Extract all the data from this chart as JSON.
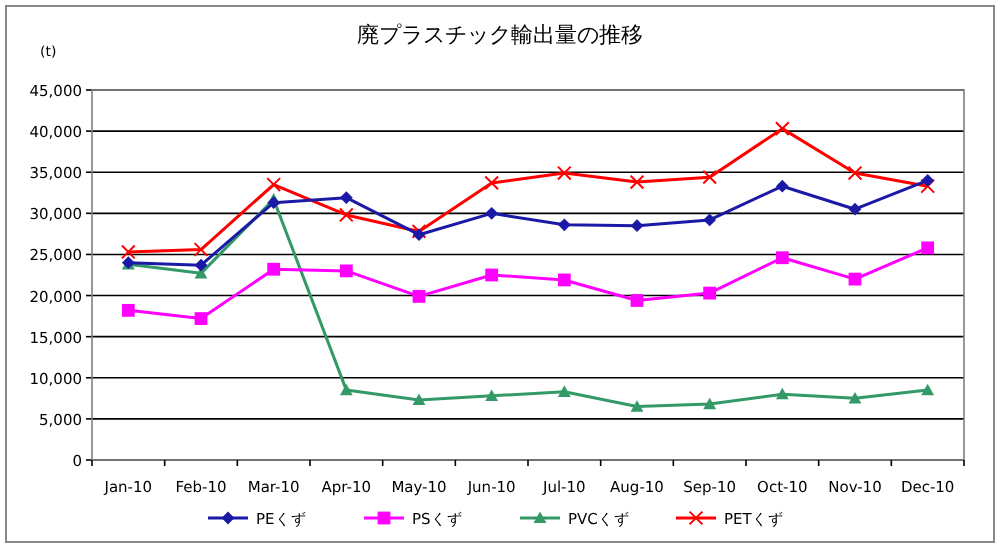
{
  "chart_data": {
    "type": "line",
    "title": "廃プラスチック輸出量の推移",
    "ylabel": "(t)",
    "categories": [
      "Jan-10",
      "Feb-10",
      "Mar-10",
      "Apr-10",
      "May-10",
      "Jun-10",
      "Jul-10",
      "Aug-10",
      "Sep-10",
      "Oct-10",
      "Nov-10",
      "Dec-10"
    ],
    "series": [
      {
        "name": "PEくず",
        "color": "#1a1aa6",
        "marker": "diamond",
        "values": [
          24000,
          23700,
          31300,
          31900,
          27400,
          30000,
          28600,
          28500,
          29200,
          33300,
          30500,
          34000
        ]
      },
      {
        "name": "PSくず",
        "color": "#ff00ff",
        "marker": "square",
        "values": [
          18200,
          17200,
          23200,
          23000,
          19900,
          22500,
          21900,
          19400,
          20300,
          24600,
          22000,
          25800
        ]
      },
      {
        "name": "PVCくず",
        "color": "#339966",
        "marker": "triangle",
        "values": [
          23800,
          22700,
          31700,
          8500,
          7300,
          7800,
          8300,
          6500,
          6800,
          8000,
          7500,
          8500
        ]
      },
      {
        "name": "PETくず",
        "color": "#ff0000",
        "marker": "cross",
        "values": [
          25300,
          25600,
          33500,
          29800,
          27800,
          33700,
          34900,
          33800,
          34400,
          40300,
          34900,
          33300
        ]
      }
    ],
    "ylim": [
      0,
      45000
    ],
    "yticks": [
      0,
      {
        "value": 5000,
        "label": "5,000"
      },
      {
        "value": 10000,
        "label": "10,000"
      },
      {
        "value": 15000,
        "label": "15,000"
      },
      {
        "value": 20000,
        "label": "20,000"
      },
      {
        "value": 25000,
        "label": "25,000"
      },
      {
        "value": 30000,
        "label": "30,000"
      },
      {
        "value": 35000,
        "label": "35,000"
      },
      {
        "value": 40000,
        "label": "40,000"
      },
      {
        "value": 45000,
        "label": "45,000"
      }
    ],
    "grid": "y",
    "legend": "bottom"
  }
}
